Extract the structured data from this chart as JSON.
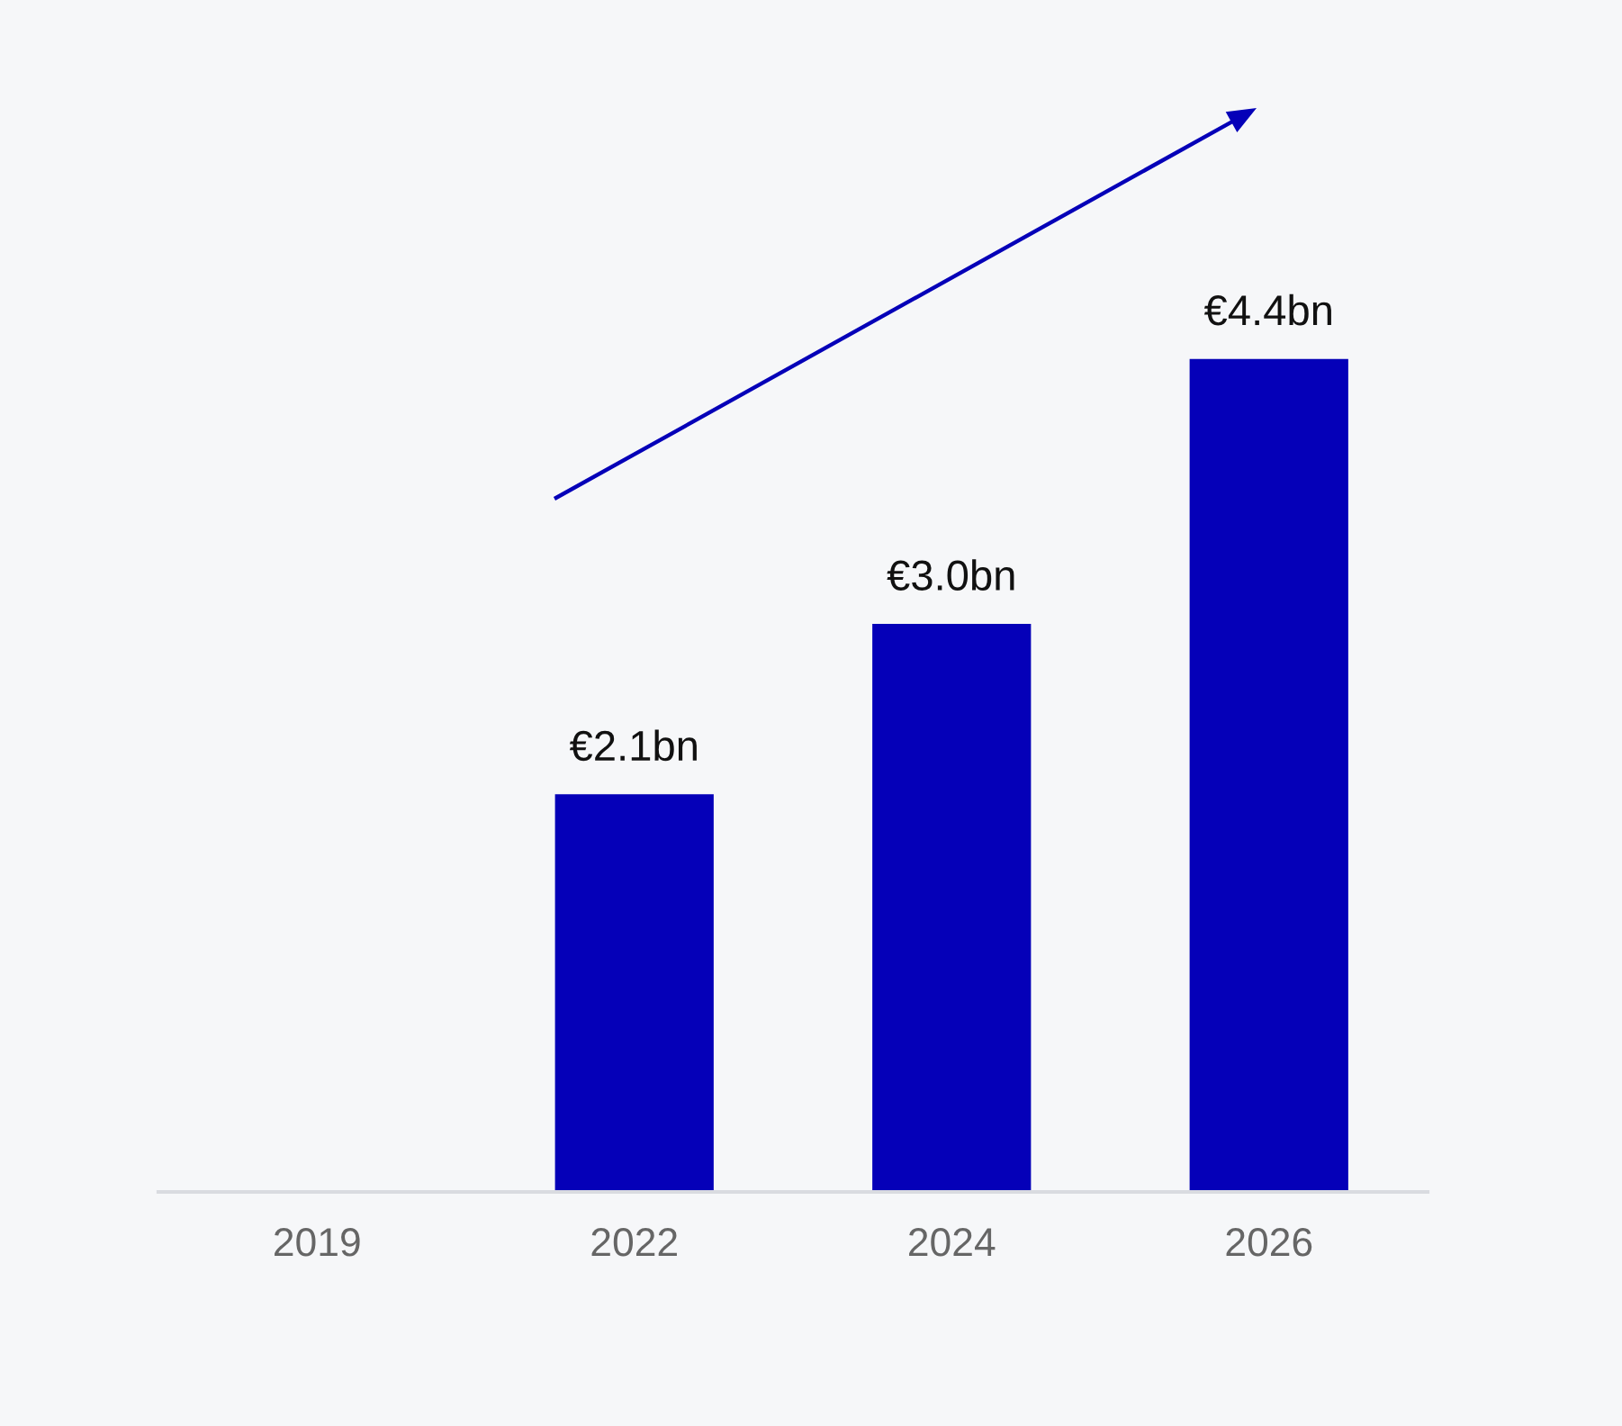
{
  "chart_data": {
    "type": "bar",
    "categories": [
      "2019",
      "2022",
      "2024",
      "2026"
    ],
    "values": [
      null,
      2.1,
      3.0,
      4.4
    ],
    "value_labels": [
      null,
      "€2.1bn",
      "€3.0bn",
      "€4.4bn"
    ],
    "color": "#0500b8",
    "tick_labels": "x",
    "grid": false,
    "legend": false
  }
}
